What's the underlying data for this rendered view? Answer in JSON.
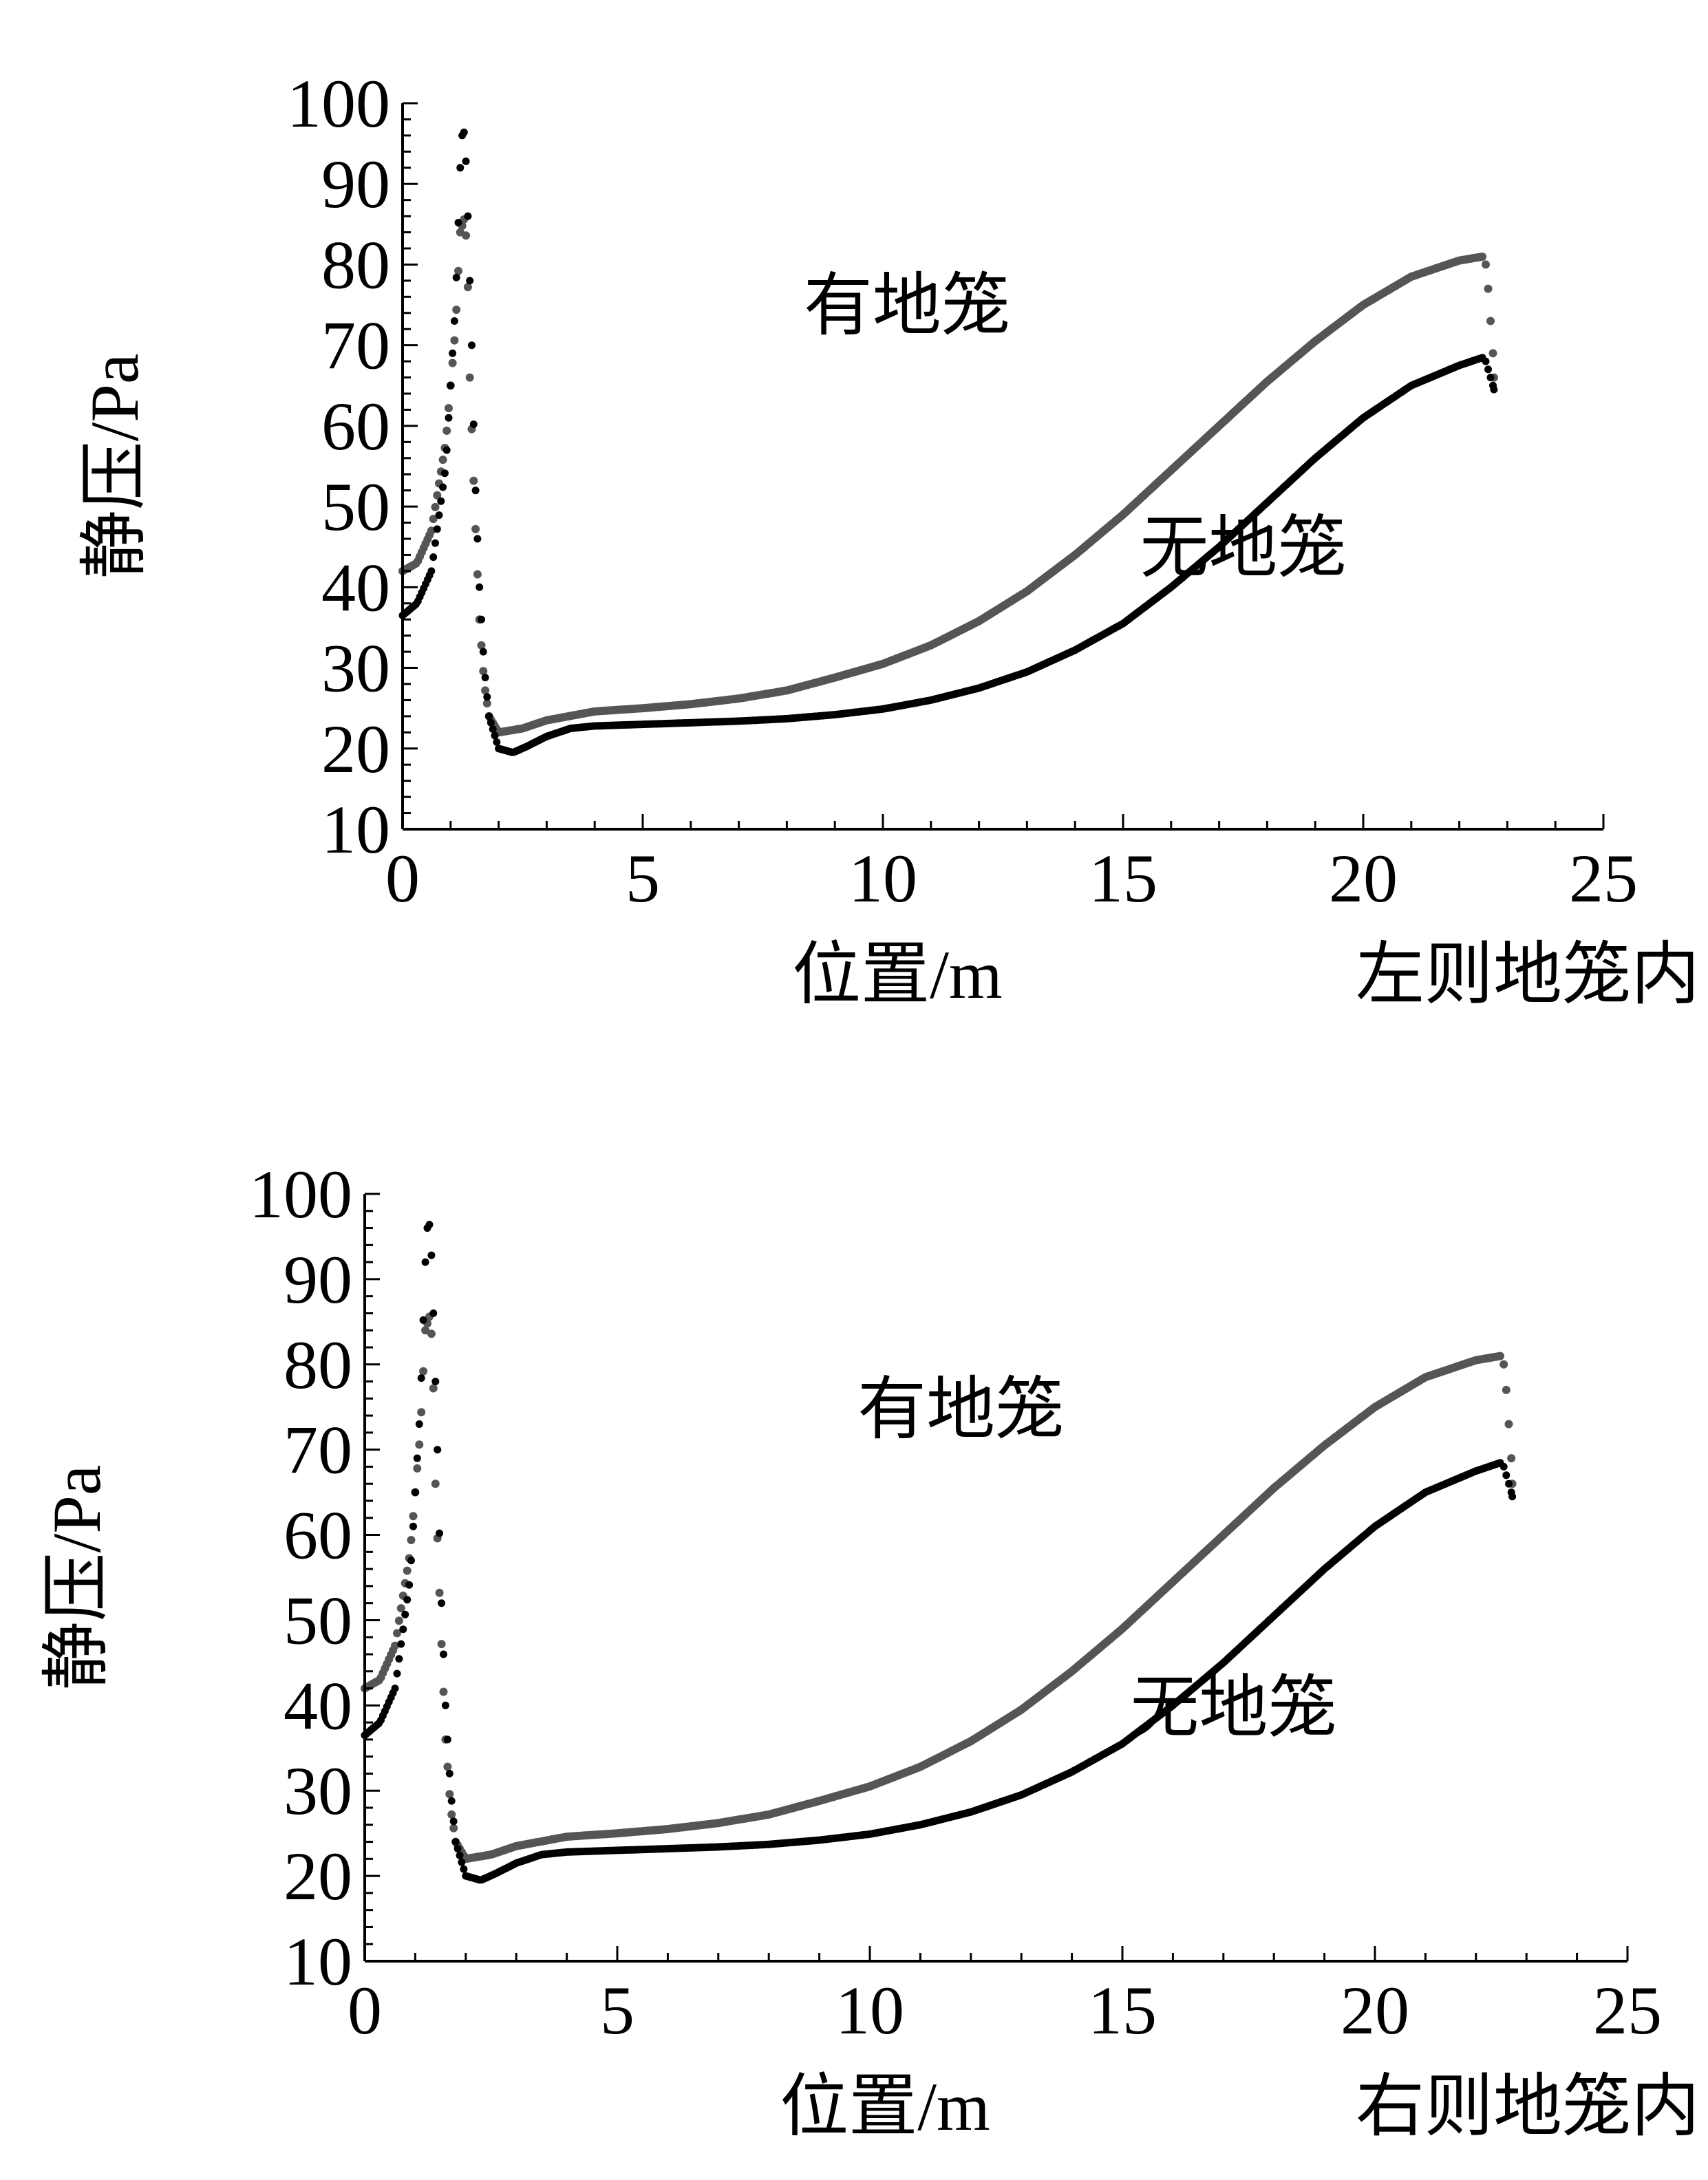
{
  "colors": {
    "with_cage": "#555555",
    "without_cage": "#000000",
    "axis": "#000000",
    "background": "#ffffff"
  },
  "chart_data": [
    {
      "type": "scatter",
      "title": "",
      "caption": "左则地笼内",
      "xlabel": "位置/m",
      "ylabel": "静压/Pa",
      "xlim": [
        0,
        25
      ],
      "ylim": [
        10,
        100
      ],
      "x_ticks": [
        "0",
        "5",
        "10",
        "15",
        "20",
        "25"
      ],
      "y_ticks": [
        "10",
        "20",
        "30",
        "40",
        "50",
        "60",
        "70",
        "80",
        "90",
        "100"
      ],
      "grid": false,
      "annotations": [
        {
          "series": "有地笼",
          "text": "有地笼",
          "x": 10.5,
          "y": 72
        },
        {
          "series": "无地笼",
          "text": "无地笼",
          "x": 17.5,
          "y": 42
        }
      ],
      "series": [
        {
          "name": "有地笼",
          "color_key": "with_cage",
          "points": [
            [
              0,
              42
            ],
            [
              0.3,
              43
            ],
            [
              0.6,
              47
            ],
            [
              0.9,
              58
            ],
            [
              1.1,
              72
            ],
            [
              1.2,
              84
            ],
            [
              1.3,
              86
            ],
            [
              1.35,
              80
            ],
            [
              1.4,
              66
            ],
            [
              1.5,
              50
            ],
            [
              1.6,
              36
            ],
            [
              1.7,
              28
            ],
            [
              1.8,
              24
            ],
            [
              2.0,
              22
            ],
            [
              2.5,
              22.5
            ],
            [
              3,
              23.5
            ],
            [
              4,
              24.6
            ],
            [
              5,
              25
            ],
            [
              6,
              25.5
            ],
            [
              7,
              26.2
            ],
            [
              8,
              27.2
            ],
            [
              9,
              28.8
            ],
            [
              10,
              30.5
            ],
            [
              11,
              32.8
            ],
            [
              12,
              35.8
            ],
            [
              13,
              39.5
            ],
            [
              14,
              44
            ],
            [
              15,
              49
            ],
            [
              16,
              54.5
            ],
            [
              17,
              60
            ],
            [
              18,
              65.5
            ],
            [
              19,
              70.5
            ],
            [
              20,
              75
            ],
            [
              21,
              78.5
            ],
            [
              22,
              80.5
            ],
            [
              22.5,
              81
            ]
          ]
        },
        {
          "name": "无地笼",
          "color_key": "without_cage",
          "points": [
            [
              0,
              36.5
            ],
            [
              0.3,
              38
            ],
            [
              0.6,
              42
            ],
            [
              0.9,
              55
            ],
            [
              1.1,
              75
            ],
            [
              1.2,
              92
            ],
            [
              1.25,
              97
            ],
            [
              1.3,
              96
            ],
            [
              1.35,
              88
            ],
            [
              1.4,
              78
            ],
            [
              1.45,
              68
            ],
            [
              1.5,
              55
            ],
            [
              1.6,
              40
            ],
            [
              1.7,
              30
            ],
            [
              1.8,
              24
            ],
            [
              2.0,
              20
            ],
            [
              2.3,
              19.5
            ],
            [
              2.6,
              20.3
            ],
            [
              3,
              21.5
            ],
            [
              3.5,
              22.5
            ],
            [
              4,
              22.8
            ],
            [
              5,
              23
            ],
            [
              6,
              23.2
            ],
            [
              7,
              23.4
            ],
            [
              8,
              23.7
            ],
            [
              9,
              24.2
            ],
            [
              10,
              24.9
            ],
            [
              11,
              26
            ],
            [
              12,
              27.5
            ],
            [
              13,
              29.5
            ],
            [
              14,
              32.2
            ],
            [
              15,
              35.5
            ],
            [
              16,
              40
            ],
            [
              17,
              45
            ],
            [
              18,
              50.5
            ],
            [
              19,
              56
            ],
            [
              20,
              61
            ],
            [
              21,
              65
            ],
            [
              22,
              67.5
            ],
            [
              22.5,
              68.5
            ]
          ]
        }
      ],
      "end_drop": {
        "with_cage": [
          [
            22.55,
            80
          ],
          [
            22.6,
            77
          ],
          [
            22.65,
            73
          ],
          [
            22.7,
            69
          ],
          [
            22.72,
            66
          ]
        ],
        "without_cage": [
          [
            22.55,
            68
          ],
          [
            22.6,
            67
          ],
          [
            22.65,
            66
          ],
          [
            22.7,
            65
          ],
          [
            22.72,
            64.5
          ]
        ]
      }
    },
    {
      "type": "scatter",
      "title": "",
      "caption": "右则地笼内",
      "xlabel": "位置/m",
      "ylabel": "静压/Pa",
      "xlim": [
        0,
        25
      ],
      "ylim": [
        10,
        100
      ],
      "x_ticks": [
        "0",
        "5",
        "10",
        "15",
        "20",
        "25"
      ],
      "y_ticks": [
        "10",
        "20",
        "30",
        "40",
        "50",
        "60",
        "70",
        "80",
        "90",
        "100"
      ],
      "grid": false,
      "annotations": [
        {
          "series": "有地笼",
          "text": "有地笼",
          "x": 11.8,
          "y": 72
        },
        {
          "series": "无地笼",
          "text": "无地笼",
          "x": 17.2,
          "y": 37
        }
      ],
      "series": [
        {
          "name": "有地笼",
          "color_key": "with_cage",
          "points": [
            [
              0,
              42
            ],
            [
              0.3,
              43
            ],
            [
              0.6,
              47
            ],
            [
              0.9,
              58
            ],
            [
              1.1,
              72
            ],
            [
              1.2,
              84
            ],
            [
              1.3,
              86
            ],
            [
              1.35,
              80
            ],
            [
              1.4,
              66
            ],
            [
              1.5,
              50
            ],
            [
              1.6,
              36
            ],
            [
              1.7,
              28
            ],
            [
              1.8,
              24
            ],
            [
              2.0,
              22
            ],
            [
              2.5,
              22.5
            ],
            [
              3,
              23.5
            ],
            [
              4,
              24.6
            ],
            [
              5,
              25
            ],
            [
              6,
              25.5
            ],
            [
              7,
              26.2
            ],
            [
              8,
              27.2
            ],
            [
              9,
              28.8
            ],
            [
              10,
              30.5
            ],
            [
              11,
              32.8
            ],
            [
              12,
              35.8
            ],
            [
              13,
              39.5
            ],
            [
              14,
              44
            ],
            [
              15,
              49
            ],
            [
              16,
              54.5
            ],
            [
              17,
              60
            ],
            [
              18,
              65.5
            ],
            [
              19,
              70.5
            ],
            [
              20,
              75
            ],
            [
              21,
              78.5
            ],
            [
              22,
              80.5
            ],
            [
              22.5,
              81
            ]
          ]
        },
        {
          "name": "无地笼",
          "color_key": "without_cage",
          "points": [
            [
              0,
              36.5
            ],
            [
              0.3,
              38
            ],
            [
              0.6,
              42
            ],
            [
              0.9,
              55
            ],
            [
              1.1,
              75
            ],
            [
              1.2,
              92
            ],
            [
              1.25,
              97
            ],
            [
              1.3,
              96
            ],
            [
              1.35,
              88
            ],
            [
              1.4,
              78
            ],
            [
              1.45,
              68
            ],
            [
              1.5,
              55
            ],
            [
              1.6,
              40
            ],
            [
              1.7,
              30
            ],
            [
              1.8,
              24
            ],
            [
              2.0,
              20
            ],
            [
              2.3,
              19.5
            ],
            [
              2.6,
              20.3
            ],
            [
              3,
              21.5
            ],
            [
              3.5,
              22.5
            ],
            [
              4,
              22.8
            ],
            [
              5,
              23
            ],
            [
              6,
              23.2
            ],
            [
              7,
              23.4
            ],
            [
              8,
              23.7
            ],
            [
              9,
              24.2
            ],
            [
              10,
              24.9
            ],
            [
              11,
              26
            ],
            [
              12,
              27.5
            ],
            [
              13,
              29.5
            ],
            [
              14,
              32.2
            ],
            [
              15,
              35.5
            ],
            [
              16,
              40
            ],
            [
              17,
              45
            ],
            [
              18,
              50.5
            ],
            [
              19,
              56
            ],
            [
              20,
              61
            ],
            [
              21,
              65
            ],
            [
              22,
              67.5
            ],
            [
              22.5,
              68.5
            ]
          ]
        }
      ],
      "end_drop": {
        "with_cage": [
          [
            22.55,
            80
          ],
          [
            22.6,
            77
          ],
          [
            22.65,
            73
          ],
          [
            22.7,
            69
          ],
          [
            22.72,
            66
          ]
        ],
        "without_cage": [
          [
            22.55,
            68
          ],
          [
            22.6,
            67
          ],
          [
            22.65,
            66
          ],
          [
            22.7,
            65
          ],
          [
            22.72,
            64.5
          ]
        ]
      }
    }
  ]
}
